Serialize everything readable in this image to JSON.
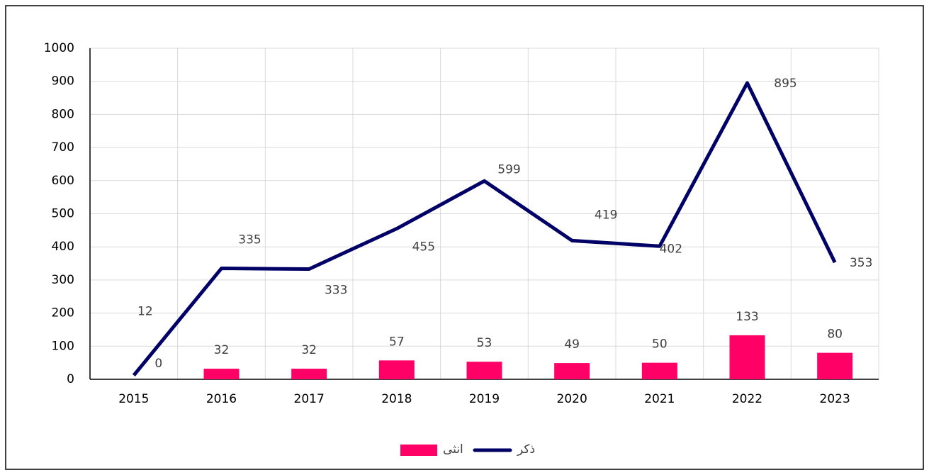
{
  "chart_data": {
    "type": "combo",
    "categories": [
      "2015",
      "2016",
      "2017",
      "2018",
      "2019",
      "2020",
      "2021",
      "2022",
      "2023"
    ],
    "series": [
      {
        "name": "انثى",
        "type": "bar",
        "color": "#ff0066",
        "values": [
          0,
          32,
          32,
          57,
          53,
          49,
          50,
          133,
          80
        ]
      },
      {
        "name": "ذكر",
        "type": "line",
        "color": "#000066",
        "values": [
          12,
          335,
          333,
          455,
          599,
          419,
          402,
          895,
          353
        ]
      }
    ],
    "ylim": [
      0,
      1000
    ],
    "yticks": [
      0,
      100,
      200,
      300,
      400,
      500,
      600,
      700,
      800,
      900,
      1000
    ],
    "grid": true
  }
}
